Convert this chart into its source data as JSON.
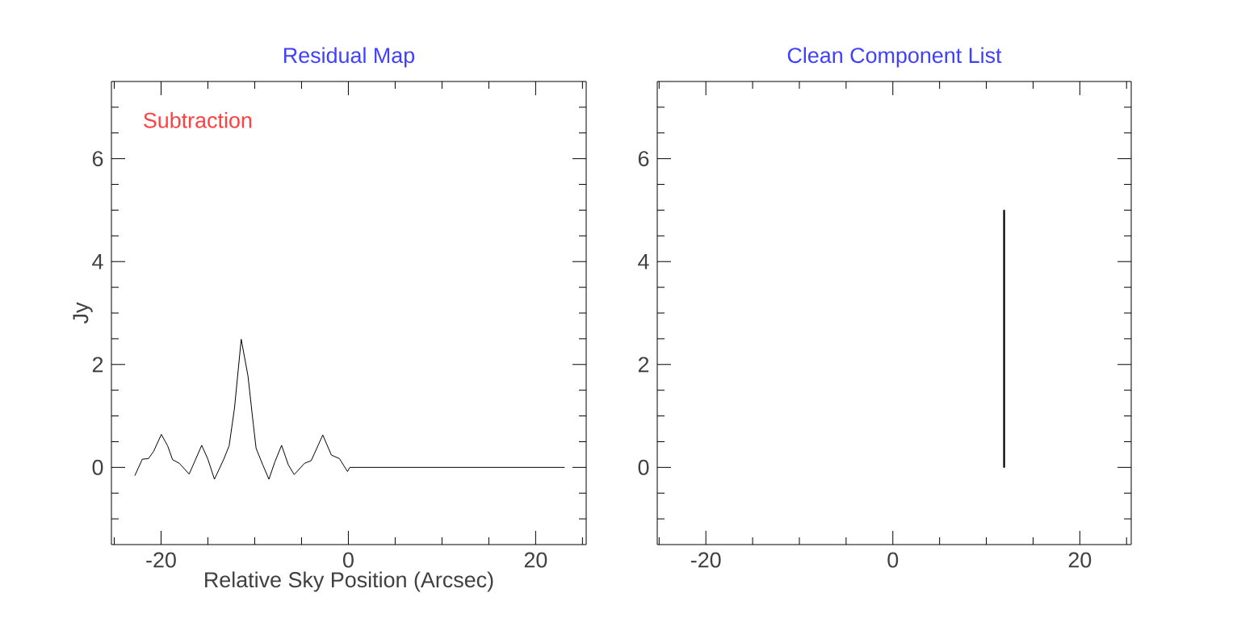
{
  "chart_data": [
    {
      "type": "line",
      "title": "Residual Map",
      "xlabel": "Relative Sky Position (Arcsec)",
      "ylabel": "Jy",
      "annotations": [
        "Subtraction"
      ],
      "color": "#000000",
      "x": [
        -22.8,
        -22.0,
        -21.35,
        -20.8,
        -19.97,
        -19.3,
        -18.77,
        -18.05,
        -17.0,
        -16.3,
        -15.66,
        -15.0,
        -14.3,
        -13.3,
        -12.73,
        -12.16,
        -11.44,
        -10.72,
        -10.15,
        -9.85,
        -9.14,
        -8.48,
        -7.84,
        -7.13,
        -6.41,
        -5.78,
        -4.68,
        -3.97,
        -2.73,
        -1.81,
        -0.95,
        -0.09,
        0.15,
        23.1
      ],
      "values": [
        -0.16,
        0.16,
        0.17,
        0.31,
        0.64,
        0.42,
        0.15,
        0.08,
        -0.13,
        0.16,
        0.43,
        0.16,
        -0.23,
        0.16,
        0.42,
        1.15,
        2.49,
        1.78,
        0.84,
        0.37,
        0.05,
        -0.23,
        0.11,
        0.43,
        0.05,
        -0.14,
        0.08,
        0.13,
        0.63,
        0.24,
        0.17,
        -0.08,
        0,
        0
      ],
      "xlim": [
        -25.3,
        25.4
      ],
      "ylim": [
        -1.5,
        7.5
      ],
      "xticks": [
        {
          "value": -25,
          "label": null
        },
        -20,
        {
          "value": -15,
          "label": null
        },
        {
          "value": -10,
          "label": null
        },
        {
          "value": -5,
          "label": null
        },
        0,
        {
          "value": 5,
          "label": null
        },
        {
          "value": 10,
          "label": null
        },
        {
          "value": 15,
          "label": null
        },
        20,
        {
          "value": 25,
          "label": null
        }
      ],
      "yticks": [
        {
          "value": -1,
          "label": null
        },
        {
          "value": -0.5,
          "label": null
        },
        0,
        {
          "value": 0.5,
          "label": null
        },
        {
          "value": 1,
          "label": null
        },
        {
          "value": 1.5,
          "label": null
        },
        2,
        {
          "value": 2.5,
          "label": null
        },
        {
          "value": 3,
          "label": null
        },
        {
          "value": 3.5,
          "label": null
        },
        4,
        {
          "value": 4.5,
          "label": null
        },
        {
          "value": 5,
          "label": null
        },
        {
          "value": 5.5,
          "label": null
        },
        6,
        {
          "value": 6.5,
          "label": null
        },
        {
          "value": 7,
          "label": null
        }
      ]
    },
    {
      "type": "bar",
      "title": "Clean Component List",
      "color": "#000000",
      "x": [
        11.9
      ],
      "values": [
        5
      ],
      "xlim": [
        -25.2,
        25.5
      ],
      "ylim": [
        -1.5,
        7.5
      ],
      "xticks": [
        {
          "value": -25,
          "label": null
        },
        -20,
        {
          "value": -15,
          "label": null
        },
        {
          "value": -10,
          "label": null
        },
        {
          "value": -5,
          "label": null
        },
        0,
        {
          "value": 5,
          "label": null
        },
        {
          "value": 10,
          "label": null
        },
        {
          "value": 15,
          "label": null
        },
        20,
        {
          "value": 25,
          "label": null
        }
      ],
      "yticks": [
        {
          "value": -1,
          "label": null
        },
        {
          "value": -0.5,
          "label": null
        },
        0,
        {
          "value": 0.5,
          "label": null
        },
        {
          "value": 1,
          "label": null
        },
        {
          "value": 1.5,
          "label": null
        },
        2,
        {
          "value": 2.5,
          "label": null
        },
        {
          "value": 3,
          "label": null
        },
        {
          "value": 3.5,
          "label": null
        },
        4,
        {
          "value": 4.5,
          "label": null
        },
        {
          "value": 5,
          "label": null
        },
        {
          "value": 5.5,
          "label": null
        },
        6,
        {
          "value": 6.5,
          "label": null
        },
        {
          "value": 7,
          "label": null
        }
      ]
    }
  ]
}
